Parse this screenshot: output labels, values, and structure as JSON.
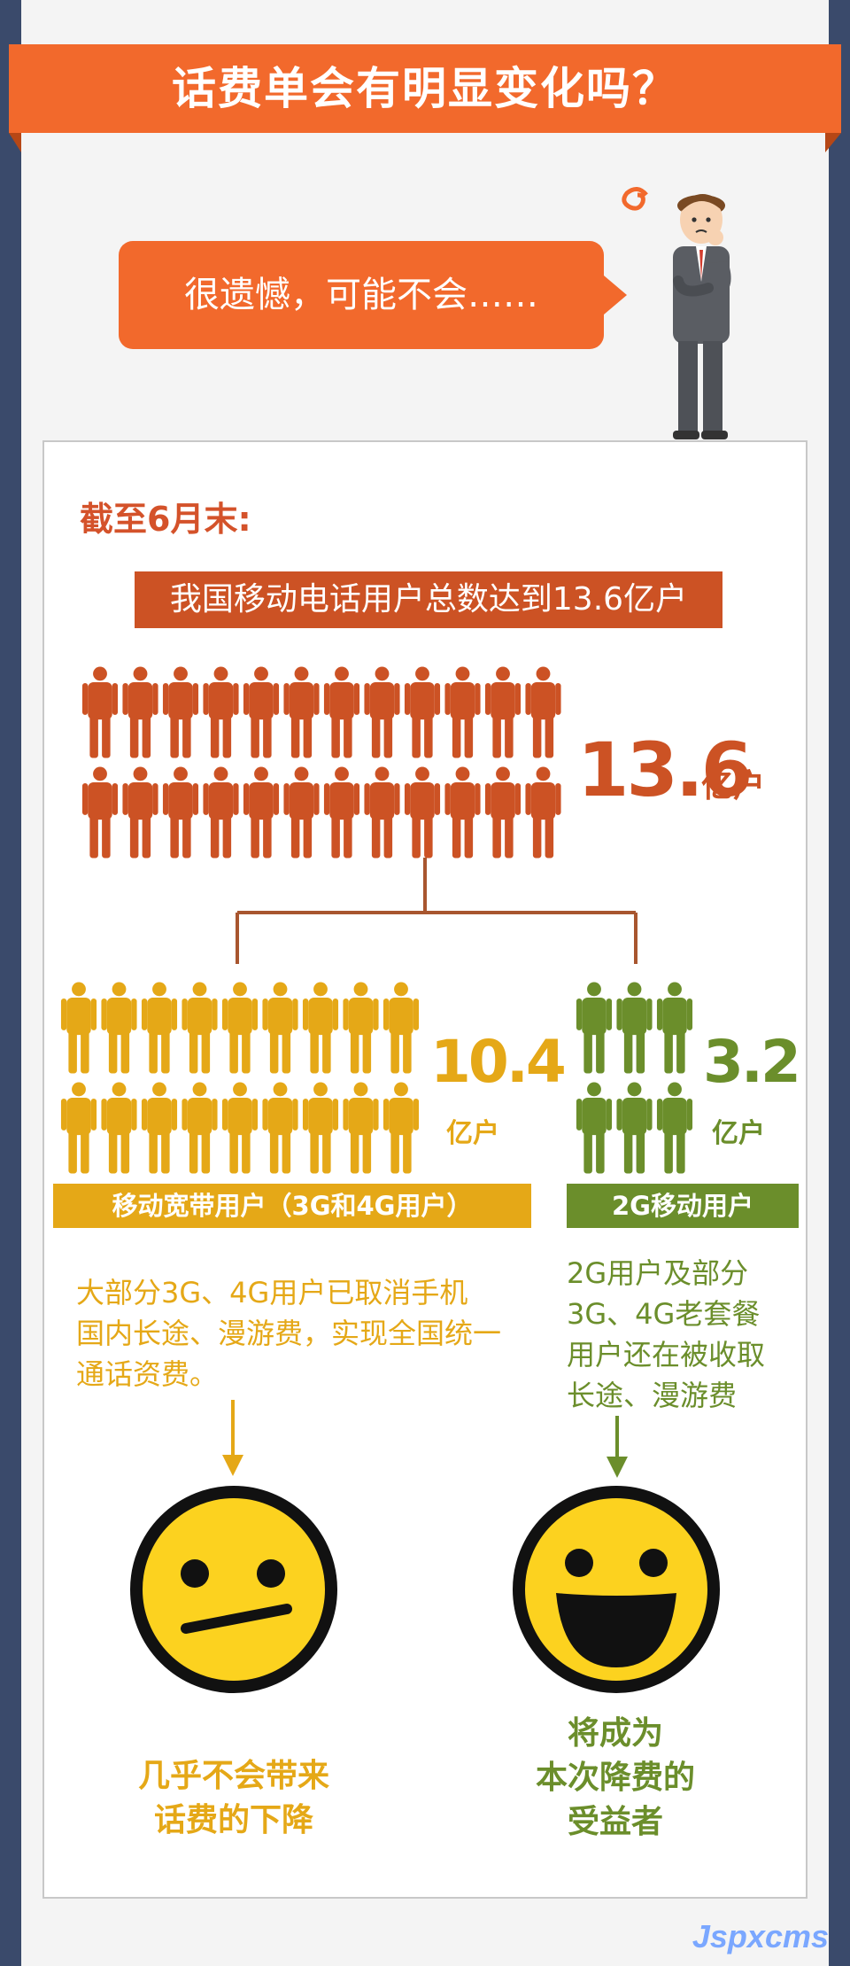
{
  "header": {
    "title": "话费单会有明显变化吗？"
  },
  "bubble": {
    "text": "很遗憾，可能不会……"
  },
  "panel": {
    "deadline": "截至6月末:",
    "total_label": "我国移动电话用户总数达到13.6亿户",
    "total": {
      "value": "13.6",
      "unit": "亿户"
    },
    "groups": [
      {
        "value": "10.4",
        "unit": "亿户",
        "label": "移动宽带用户（3G和4G用户）",
        "desc": [
          "大部分3G、4G用户已取消手机",
          "国内长途、漫游费，实现全国统一",
          "通话资费。"
        ],
        "conclusion": [
          "几乎不会带来",
          "话费的下降"
        ]
      },
      {
        "value": "3.2",
        "unit": "亿户",
        "label": "2G移动用户",
        "desc": [
          "2G用户及部分",
          "3G、4G老套餐",
          "用户还在被收取",
          "长途、漫游费"
        ],
        "conclusion": [
          "将成为",
          "本次降费的",
          "受益者"
        ]
      }
    ]
  },
  "watermark": "Jspxcms",
  "colors": {
    "orange": "#f2692c",
    "rust": "#cc5224",
    "yellow": "#e5a817",
    "green": "#6b8e2b",
    "navy": "#3a4a6b",
    "face": "#fcd21f"
  },
  "icons": [
    "person-icon",
    "thinking-man-icon",
    "neutral-face-icon",
    "laughing-face-icon",
    "down-arrow-icon"
  ]
}
